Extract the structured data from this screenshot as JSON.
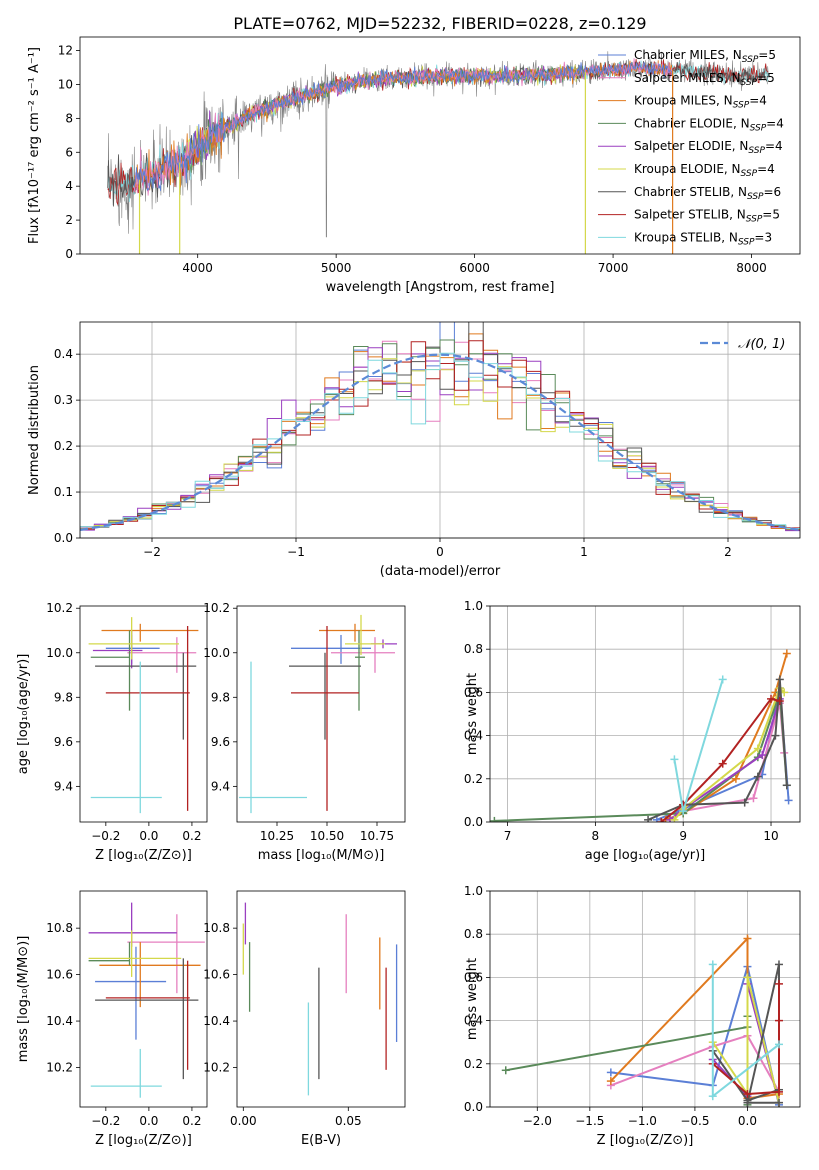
{
  "title": "PLATE=0762, MJD=52232, FIBERID=0228, z=0.129",
  "colors": {
    "Chabrier MILES": "#5b7fd6",
    "Salpeter MILES": "#e57fbf",
    "Kroupa MILES": "#e07a1f",
    "Chabrier ELODIE": "#5a8a5a",
    "Salpeter ELODIE": "#9a3fc0",
    "Kroupa ELODIE": "#d4d84a",
    "Chabrier STELIB": "#555555",
    "Salpeter STELIB": "#b22222",
    "Kroupa STELIB": "#7fd8de",
    "data": "#808080",
    "gauss": "#5b8ad6"
  },
  "chart_data": [
    {
      "type": "line",
      "title": "PLATE=0762, MJD=52232, FIBERID=0228, z=0.129",
      "xlabel": "wavelength [Angstrom, rest frame]",
      "ylabel": "Flux [fλ10⁻¹⁷ erg cm⁻² s⁻¹ A⁻¹]",
      "xlim": [
        3150,
        8350
      ],
      "ylim": [
        0,
        12.8
      ],
      "xticks": [
        "4000",
        "5000",
        "6000",
        "7000",
        "8000"
      ],
      "yticks": [
        "0",
        "2",
        "4",
        "6",
        "8",
        "10",
        "12"
      ],
      "legend_loc": "upper right",
      "legend": [
        {
          "label": "Chabrier MILES, N",
          "sub": "SSP",
          "tail": "=5"
        },
        {
          "label": "Salpeter MILES, N",
          "sub": "SSP",
          "tail": "=5"
        },
        {
          "label": "Kroupa MILES, N",
          "sub": "SSP",
          "tail": "=4"
        },
        {
          "label": "Chabrier ELODIE, N",
          "sub": "SSP",
          "tail": "=4"
        },
        {
          "label": "Salpeter ELODIE, N",
          "sub": "SSP",
          "tail": "=4"
        },
        {
          "label": "Kroupa ELODIE, N",
          "sub": "SSP",
          "tail": "=4"
        },
        {
          "label": "Chabrier STELIB, N",
          "sub": "SSP",
          "tail": "=6"
        },
        {
          "label": "Salpeter STELIB, N",
          "sub": "SSP",
          "tail": "=5"
        },
        {
          "label": "Kroupa STELIB, N",
          "sub": "SSP",
          "tail": "=3"
        }
      ],
      "continuum": {
        "x": [
          3350,
          3500,
          3700,
          3900,
          4000,
          4200,
          4400,
          4600,
          4800,
          5000,
          5200,
          5500,
          5800,
          6000,
          6300,
          6600,
          6900,
          7200,
          7500,
          7800,
          8100
        ],
        "y": [
          4.0,
          4.1,
          4.8,
          5.5,
          6.3,
          7.4,
          8.3,
          8.9,
          9.4,
          9.9,
          10.2,
          10.4,
          10.5,
          10.5,
          10.5,
          10.6,
          10.8,
          11.0,
          10.8,
          10.6,
          10.5
        ]
      },
      "features": {
        "model_edges": [
          {
            "x": 3580,
            "y0": 0
          },
          {
            "x": 3870,
            "y0": 0
          },
          {
            "x": 6800,
            "y0": 0
          },
          {
            "x": 7430,
            "y0": 0
          }
        ],
        "data_dips": [
          {
            "x": 4930,
            "y": 1.0
          },
          {
            "x": 3620,
            "y": 1.2
          },
          {
            "x": 3750,
            "y": 0.9
          }
        ]
      }
    },
    {
      "type": "bar",
      "xlabel": "(data-model)/error",
      "ylabel": "Normed distribution",
      "xlim": [
        -2.5,
        2.5
      ],
      "ylim": [
        0,
        0.47
      ],
      "xticks": [
        "−2",
        "−1",
        "0",
        "1",
        "2"
      ],
      "yticks": [
        "0.0",
        "0.1",
        "0.2",
        "0.3",
        "0.4"
      ],
      "legend_loc": "upper right",
      "legend_label": "𝒩(0, 1)",
      "bin_width": 0.1,
      "reference_curve": "gaussian(0,1)"
    },
    {
      "type": "scatter",
      "xlabel": "Z [log₁₀(Z/Z⊙)]",
      "ylabel": "age  [log₁₀(age/yr)]",
      "xlim": [
        -0.32,
        0.27
      ],
      "ylim": [
        9.24,
        10.21
      ],
      "xticks": [
        "−0.2",
        "0.0",
        "0.2"
      ],
      "yticks": [
        "9.4",
        "9.6",
        "9.8",
        "10.0",
        "10.2"
      ],
      "points": [
        {
          "series": "Chabrier MILES",
          "x": -0.08,
          "xe": [
            0.12,
            0.13
          ],
          "y": 10.02,
          "ye": [
            0.07,
            0.06
          ]
        },
        {
          "series": "Salpeter MILES",
          "x": 0.13,
          "xe": [
            0.23,
            0.09
          ],
          "y": 10.0,
          "ye": [
            0.09,
            0.07
          ]
        },
        {
          "series": "Kroupa MILES",
          "x": -0.04,
          "xe": [
            0.18,
            0.27
          ],
          "y": 10.1,
          "ye": [
            0.05,
            0.03
          ]
        },
        {
          "series": "Chabrier ELODIE",
          "x": -0.09,
          "xe": [
            0.18,
            0.0
          ],
          "y": 9.98,
          "ye": [
            0.24,
            0.12
          ]
        },
        {
          "series": "Salpeter ELODIE",
          "x": -0.08,
          "xe": [
            0.18,
            0.05
          ],
          "y": 10.01,
          "ye": [
            0.08,
            0.09
          ]
        },
        {
          "series": "Kroupa ELODIE",
          "x": -0.08,
          "xe": [
            0.2,
            0.22
          ],
          "y": 10.04,
          "ye": [
            0.07,
            0.12
          ]
        },
        {
          "series": "Chabrier STELIB",
          "x": 0.16,
          "xe": [
            0.41,
            0.06
          ],
          "y": 9.94,
          "ye": [
            0.33,
            0.06
          ]
        },
        {
          "series": "Salpeter STELIB",
          "x": 0.18,
          "xe": [
            0.38,
            0.01
          ],
          "y": 9.82,
          "ye": [
            0.53,
            0.3
          ]
        },
        {
          "series": "Kroupa STELIB",
          "x": -0.04,
          "xe": [
            0.23,
            0.1
          ],
          "y": 9.35,
          "ye": [
            0.07,
            0.61
          ]
        }
      ]
    },
    {
      "type": "scatter",
      "xlabel": "mass [log₁₀(M/M⊙)]",
      "xlim": [
        10.05,
        10.89
      ],
      "ylim": [
        9.24,
        10.21
      ],
      "xticks": [
        "10.25",
        "10.50",
        "10.75"
      ],
      "yticks": [
        "9.4",
        "9.6",
        "9.8",
        "10.0",
        "10.2"
      ],
      "points": [
        {
          "series": "Chabrier MILES",
          "x": 10.57,
          "xe": [
            0.25,
            0.15
          ],
          "y": 10.02,
          "ye": [
            0.07,
            0.06
          ]
        },
        {
          "series": "Salpeter MILES",
          "x": 10.74,
          "xe": [
            0.22,
            0.1
          ],
          "y": 10.0,
          "ye": [
            0.09,
            0.07
          ]
        },
        {
          "series": "Kroupa MILES",
          "x": 10.64,
          "xe": [
            0.18,
            0.1
          ],
          "y": 10.1,
          "ye": [
            0.05,
            0.03
          ]
        },
        {
          "series": "Chabrier ELODIE",
          "x": 10.66,
          "xe": [
            0.02,
            0.03
          ],
          "y": 9.98,
          "ye": [
            0.24,
            0.12
          ]
        },
        {
          "series": "Salpeter ELODIE",
          "x": 10.78,
          "xe": [
            0.06,
            0.07
          ],
          "y": 10.04,
          "ye": [
            0.02,
            0.02
          ]
        },
        {
          "series": "Kroupa ELODIE",
          "x": 10.67,
          "xe": [
            0.08,
            0.12
          ],
          "y": 10.04,
          "ye": [
            0.05,
            0.13
          ]
        },
        {
          "series": "Chabrier STELIB",
          "x": 10.49,
          "xe": [
            0.18,
            0.18
          ],
          "y": 9.94,
          "ye": [
            0.33,
            0.06
          ]
        },
        {
          "series": "Salpeter STELIB",
          "x": 10.5,
          "xe": [
            0.18,
            0.16
          ],
          "y": 9.82,
          "ye": [
            0.53,
            0.3
          ]
        },
        {
          "series": "Kroupa STELIB",
          "x": 10.12,
          "xe": [
            0.06,
            0.28
          ],
          "y": 9.35,
          "ye": [
            0.07,
            0.61
          ]
        }
      ]
    },
    {
      "type": "line",
      "xlabel": "age  [log₁₀(age/yr)]",
      "ylabel": "mass weight",
      "xlim": [
        6.8,
        10.33
      ],
      "ylim": [
        0,
        1.0
      ],
      "xticks": [
        "7",
        "8",
        "9",
        "10"
      ],
      "yticks": [
        "0.0",
        "0.2",
        "0.4",
        "0.6",
        "0.8",
        "1.0"
      ],
      "series": [
        {
          "name": "Chabrier MILES",
          "x": [
            8.7,
            9.0,
            9.9,
            10.1,
            10.2
          ],
          "y": [
            0.01,
            0.06,
            0.22,
            0.62,
            0.1
          ]
        },
        {
          "name": "Salpeter MILES",
          "x": [
            8.85,
            9.0,
            9.8,
            10.1,
            10.15
          ],
          "y": [
            0.01,
            0.05,
            0.11,
            0.55,
            0.32
          ]
        },
        {
          "name": "Kroupa MILES",
          "x": [
            8.8,
            9.0,
            9.6,
            10.05,
            10.18
          ],
          "y": [
            0.01,
            0.04,
            0.2,
            0.6,
            0.78
          ]
        },
        {
          "name": "Chabrier ELODIE",
          "x": [
            6.85,
            9.0,
            9.85,
            10.1,
            10.18
          ],
          "y": [
            0.005,
            0.04,
            0.3,
            0.6,
            0.17
          ]
        },
        {
          "name": "Salpeter ELODIE",
          "x": [
            8.85,
            9.0,
            9.9,
            10.1
          ],
          "y": [
            0.01,
            0.06,
            0.31,
            0.57
          ]
        },
        {
          "name": "Kroupa ELODIE",
          "x": [
            8.9,
            9.0,
            9.85,
            10.1,
            10.15
          ],
          "y": [
            0.01,
            0.06,
            0.34,
            0.62,
            0.6
          ]
        },
        {
          "name": "Chabrier STELIB",
          "x": [
            8.6,
            9.0,
            9.7,
            9.85,
            10.05,
            10.1,
            10.18
          ],
          "y": [
            0.01,
            0.08,
            0.09,
            0.21,
            0.4,
            0.66,
            0.17
          ]
        },
        {
          "name": "Salpeter STELIB",
          "x": [
            8.75,
            9.0,
            9.45,
            10.0,
            10.1
          ],
          "y": [
            0.0,
            0.08,
            0.27,
            0.57,
            0.56
          ]
        },
        {
          "name": "Kroupa STELIB",
          "x": [
            8.9,
            9.0,
            9.45
          ],
          "y": [
            0.29,
            0.05,
            0.66
          ]
        }
      ]
    },
    {
      "type": "scatter",
      "xlabel": "Z [log₁₀(Z/Z⊙)]",
      "ylabel": "mass [log₁₀(M/M⊙)]",
      "xlim": [
        -0.32,
        0.27
      ],
      "ylim": [
        10.03,
        10.96
      ],
      "xticks": [
        "−0.2",
        "0.0",
        "0.2"
      ],
      "yticks": [
        "10.2",
        "10.4",
        "10.6",
        "10.8"
      ],
      "points": [
        {
          "series": "Chabrier MILES",
          "x": -0.06,
          "xe": [
            0.19,
            0.14
          ],
          "y": 10.57,
          "ye": [
            0.25,
            0.15
          ]
        },
        {
          "series": "Salpeter MILES",
          "x": 0.13,
          "xe": [
            0.23,
            0.13
          ],
          "y": 10.74,
          "ye": [
            0.22,
            0.12
          ]
        },
        {
          "series": "Kroupa MILES",
          "x": -0.04,
          "xe": [
            0.19,
            0.28
          ],
          "y": 10.64,
          "ye": [
            0.18,
            0.1
          ]
        },
        {
          "series": "Chabrier ELODIE",
          "x": -0.09,
          "xe": [
            0.19,
            0.0
          ],
          "y": 10.66,
          "ye": [
            0.02,
            0.08
          ]
        },
        {
          "series": "Salpeter ELODIE",
          "x": -0.08,
          "xe": [
            0.2,
            0.21
          ],
          "y": 10.78,
          "ye": [
            0.06,
            0.13
          ]
        },
        {
          "series": "Kroupa ELODIE",
          "x": -0.08,
          "xe": [
            0.2,
            0.23
          ],
          "y": 10.67,
          "ye": [
            0.08,
            0.12
          ]
        },
        {
          "series": "Chabrier STELIB",
          "x": 0.16,
          "xe": [
            0.41,
            0.07
          ],
          "y": 10.49,
          "ye": [
            0.34,
            0.18
          ]
        },
        {
          "series": "Salpeter STELIB",
          "x": 0.18,
          "xe": [
            0.38,
            0.01
          ],
          "y": 10.5,
          "ye": [
            0.31,
            0.16
          ]
        },
        {
          "series": "Kroupa STELIB",
          "x": -0.04,
          "xe": [
            0.23,
            0.1
          ],
          "y": 10.12,
          "ye": [
            0.05,
            0.16
          ]
        }
      ]
    },
    {
      "type": "scatter",
      "xlabel": "E(B-V)",
      "xlim": [
        -0.003,
        0.077
      ],
      "ylim": [
        10.03,
        10.96
      ],
      "xticks": [
        "0.00",
        "0.05"
      ],
      "yticks": [
        "10.2",
        "10.4",
        "10.6",
        "10.8"
      ],
      "points": [
        {
          "series": "Chabrier MILES",
          "x": 0.073,
          "y": 10.52,
          "ye": [
            0.21,
            0.21
          ]
        },
        {
          "series": "Salpeter MILES",
          "x": 0.049,
          "y": 10.7,
          "ye": [
            0.18,
            0.16
          ]
        },
        {
          "series": "Kroupa MILES",
          "x": 0.065,
          "y": 10.57,
          "ye": [
            0.12,
            0.19
          ]
        },
        {
          "series": "Chabrier ELODIE",
          "x": 0.003,
          "y": 10.59,
          "ye": [
            0.15,
            0.15
          ]
        },
        {
          "series": "Salpeter ELODIE",
          "x": 0.001,
          "y": 10.83,
          "ye": [
            0.1,
            0.08
          ]
        },
        {
          "series": "Kroupa ELODIE",
          "x": 0.0,
          "y": 10.72,
          "ye": [
            0.12,
            0.1
          ]
        },
        {
          "series": "Chabrier STELIB",
          "x": 0.036,
          "y": 10.39,
          "ye": [
            0.24,
            0.24
          ]
        },
        {
          "series": "Salpeter STELIB",
          "x": 0.068,
          "y": 10.41,
          "ye": [
            0.22,
            0.22
          ]
        },
        {
          "series": "Kroupa STELIB",
          "x": 0.031,
          "y": 10.28,
          "ye": [
            0.2,
            0.2
          ]
        }
      ]
    },
    {
      "type": "line",
      "xlabel": "Z [log₁₀(Z/Z⊙)]",
      "ylabel": "mass weight",
      "xlim": [
        -2.45,
        0.5
      ],
      "ylim": [
        0,
        1.0
      ],
      "xticks": [
        "−2.0",
        "−1.5",
        "−1.0",
        "−0.5",
        "0.0"
      ],
      "yticks": [
        "0.0",
        "0.2",
        "0.4",
        "0.6",
        "0.8",
        "1.0"
      ],
      "series": [
        {
          "name": "Chabrier MILES",
          "x": [
            -1.3,
            -0.33,
            0.0,
            0.3
          ],
          "y": [
            0.16,
            0.1,
            0.65,
            0.01
          ]
        },
        {
          "name": "Salpeter MILES",
          "x": [
            -1.3,
            -0.33,
            0.0,
            0.3
          ],
          "y": [
            0.1,
            0.28,
            0.33,
            0.07
          ]
        },
        {
          "name": "Kroupa MILES",
          "x": [
            -1.3,
            0.0,
            0.0,
            0.3
          ],
          "y": [
            0.12,
            0.78,
            0.04,
            0.06
          ]
        },
        {
          "name": "Chabrier ELODIE",
          "x": [
            -2.3,
            0.0,
            0.0,
            0.0
          ],
          "y": [
            0.17,
            0.37,
            0.42,
            0.01
          ]
        },
        {
          "name": "Salpeter ELODIE",
          "x": [
            -0.33,
            0.0,
            0.0,
            0.3
          ],
          "y": [
            0.22,
            0.05,
            0.57,
            0.02
          ]
        },
        {
          "name": "Kroupa ELODIE",
          "x": [
            -0.33,
            0.0,
            0.0,
            0.3
          ],
          "y": [
            0.3,
            0.06,
            0.6,
            0.02
          ]
        },
        {
          "name": "Chabrier STELIB",
          "x": [
            -0.33,
            0.0,
            0.3,
            0.3,
            0.0,
            0.3
          ],
          "y": [
            0.26,
            0.03,
            0.08,
            0.66,
            0.02,
            0.02
          ]
        },
        {
          "name": "Salpeter STELIB",
          "x": [
            -0.33,
            0.0,
            0.3,
            0.3,
            0.3
          ],
          "y": [
            0.2,
            0.06,
            0.07,
            0.57,
            0.4
          ]
        },
        {
          "name": "Kroupa STELIB",
          "x": [
            -0.33,
            -0.33,
            0.3
          ],
          "y": [
            0.66,
            0.05,
            0.29
          ]
        }
      ]
    }
  ]
}
